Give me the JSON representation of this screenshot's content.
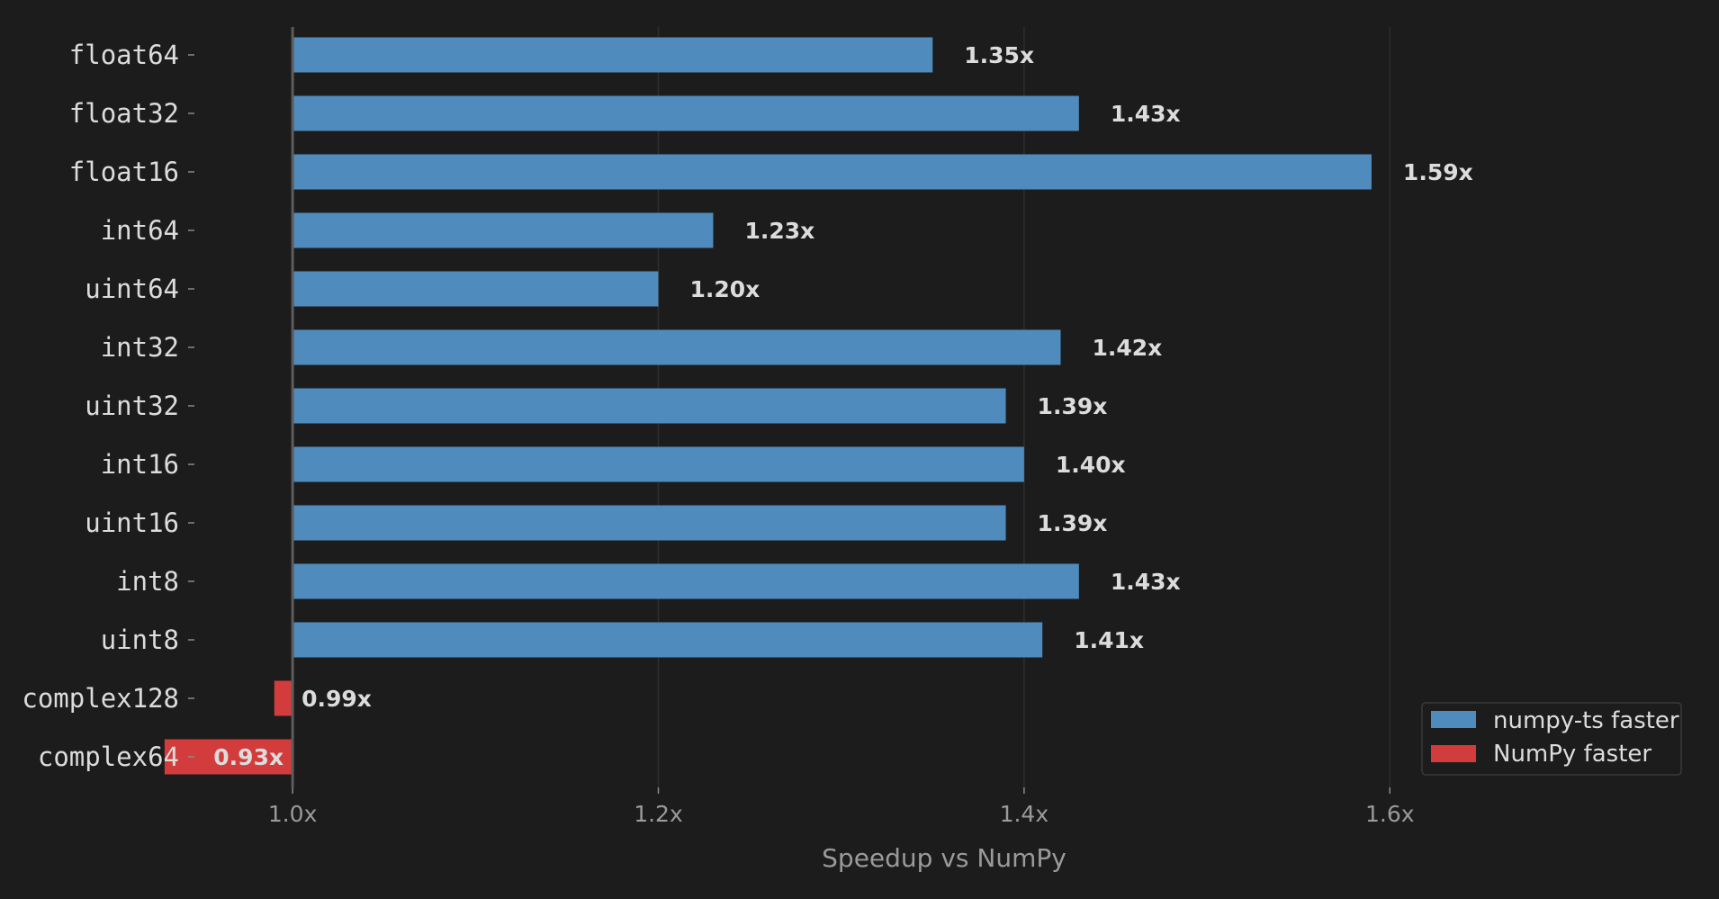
{
  "chart_data": {
    "type": "bar",
    "orientation": "horizontal",
    "baseline": 1.0,
    "categories": [
      "float64",
      "float32",
      "float16",
      "int64",
      "uint64",
      "int32",
      "uint32",
      "int16",
      "uint16",
      "int8",
      "uint8",
      "complex128",
      "complex64"
    ],
    "values": [
      1.35,
      1.43,
      1.59,
      1.23,
      1.2,
      1.42,
      1.39,
      1.4,
      1.39,
      1.43,
      1.41,
      0.99,
      0.93
    ],
    "value_labels": [
      "1.35x",
      "1.43x",
      "1.59x",
      "1.23x",
      "1.20x",
      "1.42x",
      "1.39x",
      "1.40x",
      "1.39x",
      "1.43x",
      "1.41x",
      "0.99x",
      "0.93x"
    ],
    "xlabel": "Speedup vs NumPy",
    "xlim": [
      0.84,
      1.78
    ],
    "xticks": [
      1.0,
      1.2,
      1.4,
      1.6
    ],
    "xtick_labels": [
      "1.0x",
      "1.2x",
      "1.4x",
      "1.6x"
    ],
    "grid": "vertical",
    "legend": {
      "placement": "bottom-right",
      "entries": [
        {
          "label": "numpy-ts faster",
          "color": "#4f8bbd"
        },
        {
          "label": "NumPy faster",
          "color": "#d23c3c"
        }
      ]
    },
    "colors": {
      "faster": "#4f8bbd",
      "slower": "#d23c3c",
      "background": "#1c1c1c"
    }
  }
}
